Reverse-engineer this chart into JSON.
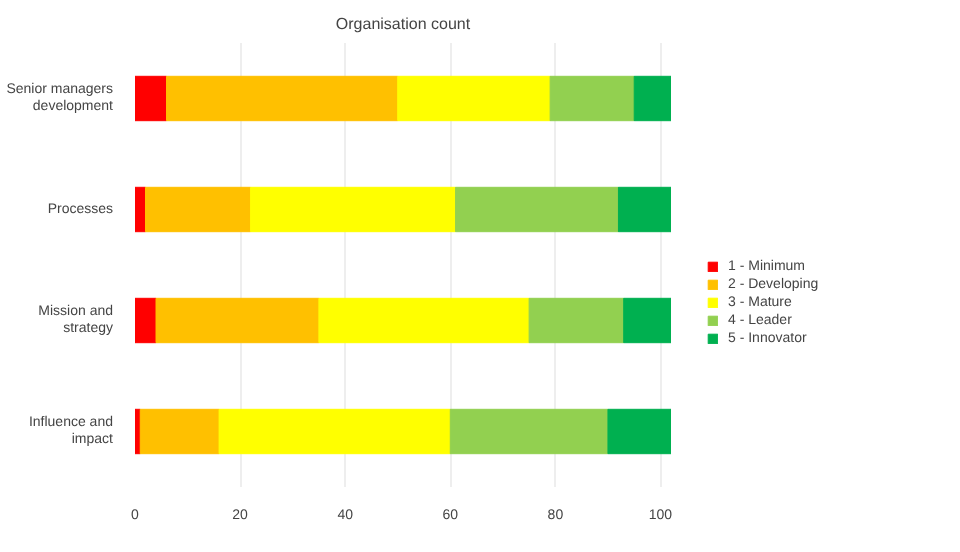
{
  "chart_data": {
    "type": "bar",
    "orientation": "horizontal",
    "stacked": true,
    "title": "Organisation count",
    "categories": [
      "Senior managers development",
      "Processes",
      "Mission and strategy",
      "Influence and impact"
    ],
    "series": [
      {
        "name": "1 - Minimum",
        "color": "#ff0000",
        "values": [
          6,
          2,
          4,
          1
        ]
      },
      {
        "name": "2 - Developing",
        "color": "#ffc000",
        "values": [
          44,
          20,
          31,
          15
        ]
      },
      {
        "name": "3 - Mature",
        "color": "#ffff00",
        "values": [
          29,
          39,
          40,
          44
        ]
      },
      {
        "name": "4 - Leader",
        "color": "#92d050",
        "values": [
          16,
          31,
          18,
          30
        ]
      },
      {
        "name": "5 - Innovator",
        "color": "#00b050",
        "values": [
          7,
          10,
          9,
          12
        ]
      }
    ],
    "xlim": [
      0,
      102
    ],
    "xticks": [
      0,
      20,
      40,
      60,
      80,
      100
    ],
    "grid": "x",
    "legend": "right"
  }
}
